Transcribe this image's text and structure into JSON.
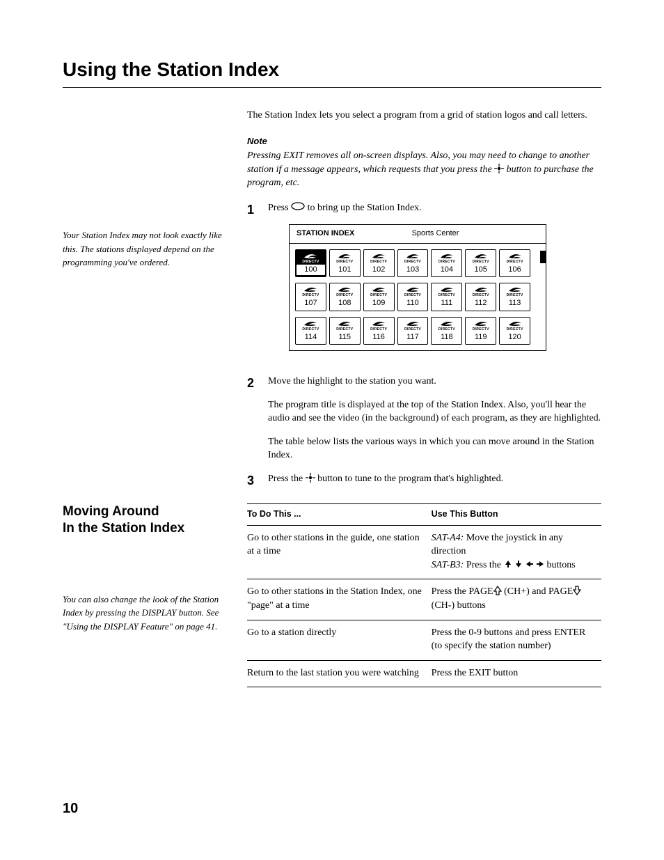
{
  "title": "Using the Station Index",
  "intro": "The Station Index lets you select a program from a grid of station logos and call letters.",
  "note": {
    "heading": "Note",
    "body_before": "Pressing EXIT removes all on-screen displays. Also, you may need to change to another station if a message appears, which requests that you press the ",
    "body_after": " button to purchase the program, etc."
  },
  "sidenote1": "Your Station Index may not look exactly like this. The stations displayed depend on the programming you've ordered.",
  "steps": {
    "s1": {
      "num": "1",
      "before": "Press ",
      "after": " to bring up the Station Index."
    },
    "s2": {
      "num": "2",
      "p1": "Move the highlight to the station you want.",
      "p2": "The program title is displayed at the top of the Station Index. Also, you'll hear the audio and see the video (in the background) of each program, as they are highlighted.",
      "p3": "The table below lists the various ways in which you can move around in the Station Index."
    },
    "s3": {
      "num": "3",
      "before": "Press the ",
      "after": " button to tune to the program that's highlighted."
    }
  },
  "figure": {
    "header_left": "STATION INDEX",
    "header_right": "Sports Center",
    "brand": "DIRECTV",
    "rows": [
      [
        {
          "n": "100",
          "sel": true
        },
        {
          "n": "101"
        },
        {
          "n": "102"
        },
        {
          "n": "103"
        },
        {
          "n": "104"
        },
        {
          "n": "105"
        },
        {
          "n": "106"
        }
      ],
      [
        {
          "n": "107"
        },
        {
          "n": "108"
        },
        {
          "n": "109"
        },
        {
          "n": "110"
        },
        {
          "n": "111"
        },
        {
          "n": "112"
        },
        {
          "n": "113"
        }
      ],
      [
        {
          "n": "114"
        },
        {
          "n": "115"
        },
        {
          "n": "116"
        },
        {
          "n": "117"
        },
        {
          "n": "118"
        },
        {
          "n": "119"
        },
        {
          "n": "120"
        }
      ]
    ]
  },
  "section2": {
    "heading_l1": "Moving Around",
    "heading_l2": "In the Station Index",
    "sidenote": "You can also change the look of the Station Index by pressing the DISPLAY button. See \"Using the DISPLAY Feature\" on page 41."
  },
  "table": {
    "col1": "To Do This ...",
    "col2": "Use This Button",
    "rows": [
      {
        "left": "Go to other stations in the guide, one station at a time",
        "r_a4_label": "SAT-A4:",
        "r_a4_text": " Move the joystick in any direction",
        "r_b3_label": "SAT-B3:",
        "r_b3_text": " Press the",
        "r_b3_after": " buttons"
      },
      {
        "left": "Go to other stations in the Station Index, one \"page\" at a time",
        "r_before": "Press the PAGE",
        "r_mid": " (CH+) and PAGE",
        "r_after": " (CH-) buttons"
      },
      {
        "left": "Go to a station directly",
        "right": "Press the 0-9 buttons and press ENTER (to specify the station number)"
      },
      {
        "left": "Return to the last station you were watching",
        "right": "Press the EXIT button"
      }
    ]
  },
  "page_number": "10"
}
